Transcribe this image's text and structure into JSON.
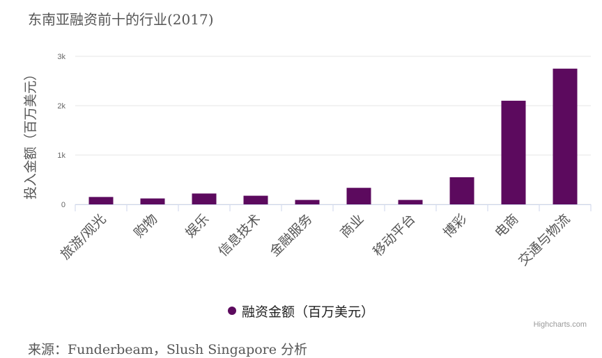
{
  "title": "东南亚融资前十的行业(2017)",
  "source": "来源：Funderbeam，Slush Singapore 分析",
  "credit": "Highcharts.com",
  "colors": {
    "bar": "#5c0a5e",
    "grid": "#e6e6e6",
    "axis": "#ccd6eb"
  },
  "chart_data": {
    "type": "bar",
    "title": "东南亚融资前十的行业(2017)",
    "xlabel": "",
    "ylabel": "投入金额（百万美元）",
    "ylim": [
      0,
      3000
    ],
    "yticks": [
      0,
      1000,
      2000,
      3000
    ],
    "ytick_labels": [
      "0",
      "1k",
      "2k",
      "3k"
    ],
    "grid": true,
    "legend": "bottom-center",
    "categories": [
      "旅游/观光",
      "购物",
      "娱乐",
      "信息技术",
      "金融服务",
      "商业",
      "移动平台",
      "博彩",
      "电商",
      "交通与物流"
    ],
    "series": [
      {
        "name": "融资金额（百万美元）",
        "values": [
          150,
          120,
          220,
          175,
          90,
          335,
          90,
          550,
          2100,
          2750
        ]
      }
    ]
  }
}
